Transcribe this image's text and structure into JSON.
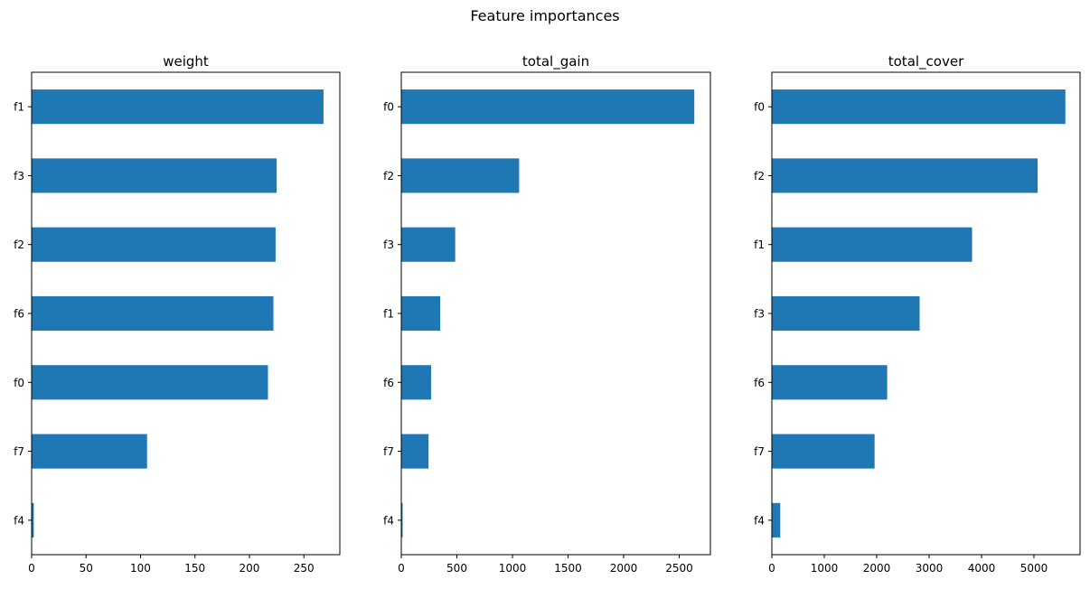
{
  "figure": {
    "title": "Feature importances"
  },
  "chart_data": [
    {
      "type": "bar",
      "orientation": "horizontal",
      "title": "weight",
      "categories": [
        "f4",
        "f7",
        "f0",
        "f6",
        "f2",
        "f3",
        "f1"
      ],
      "values": [
        2,
        106,
        217,
        222,
        224,
        225,
        268
      ],
      "xlim": [
        0,
        283
      ],
      "xticks": [
        0,
        50,
        100,
        150,
        200,
        250
      ],
      "color": "#1f77b4",
      "grid": false
    },
    {
      "type": "bar",
      "orientation": "horizontal",
      "title": "total_gain",
      "categories": [
        "f4",
        "f7",
        "f6",
        "f1",
        "f3",
        "f2",
        "f0"
      ],
      "values": [
        12,
        245,
        268,
        350,
        485,
        1060,
        2635
      ],
      "xlim": [
        0,
        2780
      ],
      "xticks": [
        0,
        500,
        1000,
        1500,
        2000,
        2500
      ],
      "color": "#1f77b4",
      "grid": false
    },
    {
      "type": "bar",
      "orientation": "horizontal",
      "title": "total_cover",
      "categories": [
        "f4",
        "f7",
        "f6",
        "f3",
        "f1",
        "f2",
        "f0"
      ],
      "values": [
        160,
        1960,
        2200,
        2820,
        3820,
        5070,
        5600
      ],
      "xlim": [
        0,
        5880
      ],
      "xticks": [
        0,
        1000,
        2000,
        3000,
        4000,
        5000
      ],
      "color": "#1f77b4",
      "grid": false
    }
  ]
}
